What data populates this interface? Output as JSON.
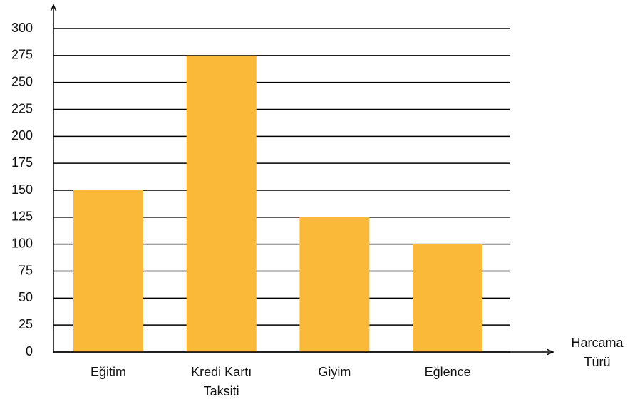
{
  "chart_data": {
    "type": "bar",
    "x_label": "Harcama Türü",
    "categories": [
      "Eğitim",
      "Kredi Kartı Taksiti",
      "Giyim",
      "Eğlence"
    ],
    "values": [
      150,
      275,
      125,
      100
    ],
    "color": "#fbb93a",
    "ylim": [
      0,
      300
    ],
    "yticks": [
      0,
      25,
      50,
      75,
      100,
      125,
      150,
      175,
      200,
      225,
      250,
      275,
      300
    ],
    "grid": true
  }
}
